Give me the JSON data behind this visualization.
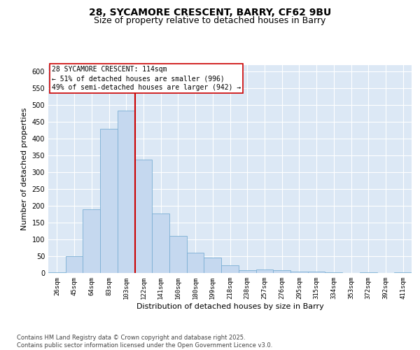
{
  "title_line1": "28, SYCAMORE CRESCENT, BARRY, CF62 9BU",
  "title_line2": "Size of property relative to detached houses in Barry",
  "xlabel": "Distribution of detached houses by size in Barry",
  "ylabel": "Number of detached properties",
  "categories": [
    "26sqm",
    "45sqm",
    "64sqm",
    "83sqm",
    "103sqm",
    "122sqm",
    "141sqm",
    "160sqm",
    "180sqm",
    "199sqm",
    "218sqm",
    "238sqm",
    "257sqm",
    "276sqm",
    "295sqm",
    "315sqm",
    "334sqm",
    "353sqm",
    "372sqm",
    "392sqm",
    "411sqm"
  ],
  "values": [
    3,
    50,
    190,
    430,
    483,
    338,
    177,
    110,
    60,
    45,
    22,
    8,
    10,
    8,
    5,
    5,
    2,
    1,
    3,
    1,
    2
  ],
  "bar_color": "#c5d8ef",
  "bar_edge_color": "#7bafd4",
  "vline_x": 4.5,
  "vline_color": "#cc0000",
  "annotation_text": "28 SYCAMORE CRESCENT: 114sqm\n← 51% of detached houses are smaller (996)\n49% of semi-detached houses are larger (942) →",
  "annotation_box_color": "#ffffff",
  "annotation_box_edge": "#cc0000",
  "ylim": [
    0,
    620
  ],
  "yticks": [
    0,
    50,
    100,
    150,
    200,
    250,
    300,
    350,
    400,
    450,
    500,
    550,
    600
  ],
  "bg_color": "#dce8f5",
  "grid_color": "#ffffff",
  "footer_text": "Contains HM Land Registry data © Crown copyright and database right 2025.\nContains public sector information licensed under the Open Government Licence v3.0.",
  "title_fontsize": 10,
  "subtitle_fontsize": 9,
  "tick_fontsize": 6.5,
  "ylabel_fontsize": 8,
  "xlabel_fontsize": 8,
  "annotation_fontsize": 7,
  "footer_fontsize": 6
}
